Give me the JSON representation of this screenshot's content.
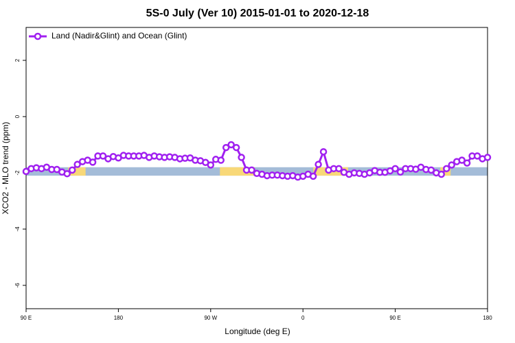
{
  "chart_data": {
    "type": "line",
    "title": "5S-0 July (Ver 10)   2015-01-01 to 2020-12-18",
    "x_label": "Longitude (deg E)",
    "y_label": "XCO2 - MLO trend (ppm)",
    "x": [
      90,
      95,
      100,
      105,
      110,
      115,
      120,
      125,
      130,
      135,
      140,
      145,
      150,
      155,
      160,
      165,
      170,
      175,
      180,
      185,
      190,
      195,
      200,
      205,
      210,
      215,
      220,
      225,
      230,
      235,
      240,
      245,
      250,
      255,
      260,
      265,
      270,
      275,
      280,
      285,
      290,
      295,
      300,
      305,
      310,
      315,
      320,
      325,
      330,
      335,
      340,
      345,
      350,
      355,
      360,
      365,
      370,
      375,
      380,
      385,
      390,
      395,
      400,
      405,
      410,
      415,
      420,
      425,
      430,
      435,
      440,
      445,
      450,
      455,
      460,
      465,
      470,
      475,
      480,
      485,
      490,
      495,
      500,
      505,
      510,
      515,
      520,
      525,
      530,
      535,
      540
    ],
    "series": [
      {
        "name": "Land (Nadir&Glint) and Ocean (Glint)",
        "color": "#a020f0",
        "values": [
          -1.95,
          -1.85,
          -1.82,
          -1.85,
          -1.8,
          -1.88,
          -1.88,
          -1.97,
          -2.03,
          -1.9,
          -1.7,
          -1.6,
          -1.55,
          -1.62,
          -1.4,
          -1.4,
          -1.5,
          -1.42,
          -1.47,
          -1.38,
          -1.4,
          -1.4,
          -1.4,
          -1.38,
          -1.45,
          -1.4,
          -1.43,
          -1.45,
          -1.43,
          -1.45,
          -1.5,
          -1.48,
          -1.47,
          -1.55,
          -1.57,
          -1.63,
          -1.72,
          -1.52,
          -1.55,
          -1.1,
          -1.0,
          -1.1,
          -1.45,
          -1.9,
          -1.9,
          -2.02,
          -2.05,
          -2.1,
          -2.08,
          -2.08,
          -2.1,
          -2.12,
          -2.1,
          -2.15,
          -2.12,
          -2.05,
          -2.12,
          -1.7,
          -1.25,
          -1.9,
          -1.85,
          -1.85,
          -1.98,
          -2.05,
          -2.0,
          -2.02,
          -2.05,
          -2.0,
          -1.92,
          -1.98,
          -1.98,
          -1.93,
          -1.85,
          -1.97,
          -1.85,
          -1.85,
          -1.87,
          -1.8,
          -1.88,
          -1.9,
          -2.0,
          -2.05,
          -1.85,
          -1.72,
          -1.6,
          -1.55,
          -1.65,
          -1.4,
          -1.4,
          -1.5,
          -1.45
        ]
      }
    ],
    "xlim": [
      90,
      540
    ],
    "xticks": [
      {
        "value": 90,
        "label": "90 E"
      },
      180,
      {
        "value": 270,
        "label": "90 W"
      },
      {
        "value": 360,
        "label": "0"
      },
      {
        "value": 450,
        "label": "90 E"
      },
      {
        "value": 540,
        "label": "180"
      }
    ],
    "ylim": [
      -6.83,
      3.17
    ],
    "yticks": [
      2,
      0,
      -2,
      -4,
      -6
    ],
    "legend": "top-left",
    "surface_strip": {
      "y": [
        -2.1,
        -1.8
      ],
      "color": "#a4bcd8",
      "segments": [
        {
          "from": 131,
          "to": 148,
          "color": "#f8d878"
        },
        {
          "from": 279,
          "to": 313,
          "color": "#f8d878"
        },
        {
          "from": 370,
          "to": 404,
          "color": "#f8d878"
        },
        {
          "from": 494,
          "to": 504,
          "color": "#f8d878"
        }
      ]
    }
  }
}
